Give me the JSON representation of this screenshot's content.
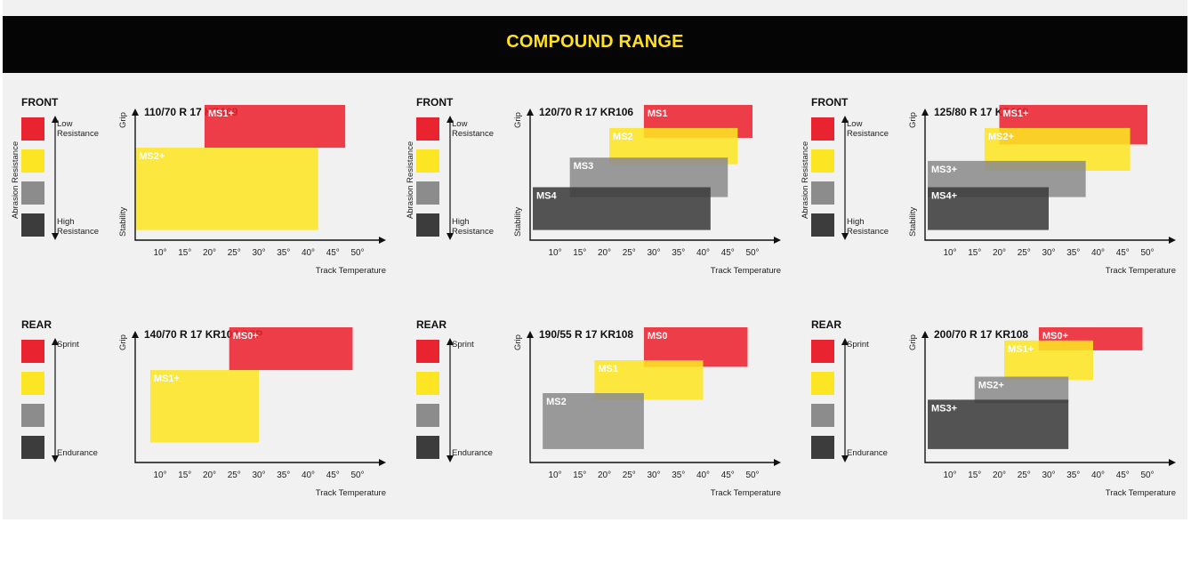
{
  "header": {
    "title": "COMPOUND RANGE"
  },
  "colors": {
    "header_bg": "#050505",
    "title": "#ffe11f",
    "red": "#ea2330",
    "yellow": "#fce523",
    "gray": "#8c8c8c",
    "dark": "#3c3c3c"
  },
  "swatch_colors": [
    "red",
    "yellow",
    "gray",
    "dark"
  ],
  "front_legend": {
    "position": "FRONT",
    "top": "Low Resistance",
    "bottom": "High Resistance",
    "side_top": "Abrasion Resistance",
    "side_bottom": "Stability"
  },
  "rear_legend": {
    "position": "REAR",
    "top": "Sprint",
    "bottom": "Endurance"
  },
  "chart_data": [
    {
      "type": "range",
      "position": "FRONT",
      "title": "110/70 R 17 KR109",
      "ylabel_top": "Grip",
      "ylabel_bottom": "Stability",
      "xlabel": "Track Temperature",
      "x_ticks": [
        "10°",
        "15°",
        "20°",
        "25°",
        "30°",
        "35°",
        "40°",
        "45°",
        "50°"
      ],
      "series": [
        {
          "name": "MS1+",
          "color": "red",
          "x_range": [
            19,
            47.5
          ],
          "y_range": [
            2.7,
            4.0
          ]
        },
        {
          "name": "MS2+",
          "color": "yellow",
          "x_range": [
            5,
            42
          ],
          "y_range": [
            0.2,
            2.7
          ]
        }
      ]
    },
    {
      "type": "range",
      "position": "FRONT",
      "title": "120/70 R 17 KR106",
      "ylabel_top": "Grip",
      "ylabel_bottom": "Stability",
      "xlabel": "Track Temperature",
      "x_ticks": [
        "10°",
        "15°",
        "20°",
        "25°",
        "30°",
        "35°",
        "40°",
        "45°",
        "50°"
      ],
      "series": [
        {
          "name": "MS1",
          "color": "red",
          "x_range": [
            28,
            50
          ],
          "y_range": [
            3.0,
            4.0
          ]
        },
        {
          "name": "MS2",
          "color": "yellow",
          "x_range": [
            21,
            47
          ],
          "y_range": [
            2.2,
            3.3
          ]
        },
        {
          "name": "MS3",
          "color": "gray",
          "x_range": [
            13,
            45
          ],
          "y_range": [
            1.2,
            2.4
          ]
        },
        {
          "name": "MS4",
          "color": "dark",
          "x_range": [
            5.5,
            41.5
          ],
          "y_range": [
            0.2,
            1.5
          ]
        }
      ]
    },
    {
      "type": "range",
      "position": "FRONT",
      "title": "125/80 R 17 KR109",
      "ylabel_top": "Grip",
      "ylabel_bottom": "Stability",
      "xlabel": "Track Temperature",
      "x_ticks": [
        "10°",
        "15°",
        "20°",
        "25°",
        "30°",
        "35°",
        "40°",
        "45°",
        "50°"
      ],
      "series": [
        {
          "name": "MS1+",
          "color": "red",
          "x_range": [
            20,
            50
          ],
          "y_range": [
            2.8,
            4.0
          ]
        },
        {
          "name": "MS2+",
          "color": "yellow",
          "x_range": [
            17,
            46.5
          ],
          "y_range": [
            2.0,
            3.3
          ]
        },
        {
          "name": "MS3+",
          "color": "gray",
          "x_range": [
            5.5,
            37.5
          ],
          "y_range": [
            1.2,
            2.3
          ]
        },
        {
          "name": "MS4+",
          "color": "dark",
          "x_range": [
            5.5,
            30
          ],
          "y_range": [
            0.2,
            1.5
          ]
        }
      ]
    },
    {
      "type": "range",
      "position": "REAR",
      "title": "140/70 R 17 KR108 SSP",
      "ylabel_top": "Grip",
      "xlabel": "Track Temperature",
      "x_ticks": [
        "10°",
        "15°",
        "20°",
        "25°",
        "30°",
        "35°",
        "40°",
        "45°",
        "50°"
      ],
      "series": [
        {
          "name": "MS0+",
          "color": "red",
          "x_range": [
            24,
            49
          ],
          "y_range": [
            2.7,
            4.0
          ]
        },
        {
          "name": "MS1+",
          "color": "yellow",
          "x_range": [
            8,
            30
          ],
          "y_range": [
            0.5,
            2.7
          ]
        }
      ]
    },
    {
      "type": "range",
      "position": "REAR",
      "title": "190/55 R 17 KR108",
      "ylabel_top": "Grip",
      "xlabel": "Track Temperature",
      "x_ticks": [
        "10°",
        "15°",
        "20°",
        "25°",
        "30°",
        "35°",
        "40°",
        "45°",
        "50°"
      ],
      "series": [
        {
          "name": "MS0",
          "color": "red",
          "x_range": [
            28,
            49
          ],
          "y_range": [
            2.8,
            4.0
          ]
        },
        {
          "name": "MS1",
          "color": "yellow",
          "x_range": [
            18,
            40
          ],
          "y_range": [
            1.8,
            3.0
          ]
        },
        {
          "name": "MS2",
          "color": "gray",
          "x_range": [
            7.5,
            28
          ],
          "y_range": [
            0.3,
            2.0
          ]
        }
      ]
    },
    {
      "type": "range",
      "position": "REAR",
      "title": "200/70 R 17 KR108",
      "ylabel_top": "Grip",
      "xlabel": "Track Temperature",
      "x_ticks": [
        "10°",
        "15°",
        "20°",
        "25°",
        "30°",
        "35°",
        "40°",
        "45°",
        "50°"
      ],
      "series": [
        {
          "name": "MS0+",
          "color": "red",
          "x_range": [
            28,
            49
          ],
          "y_range": [
            3.3,
            4.0
          ]
        },
        {
          "name": "MS1+",
          "color": "yellow",
          "x_range": [
            21,
            39
          ],
          "y_range": [
            2.4,
            3.6
          ]
        },
        {
          "name": "MS2+",
          "color": "gray",
          "x_range": [
            15,
            34
          ],
          "y_range": [
            1.7,
            2.5
          ]
        },
        {
          "name": "MS3+",
          "color": "dark",
          "x_range": [
            5.5,
            34
          ],
          "y_range": [
            0.3,
            1.8
          ]
        }
      ]
    }
  ]
}
